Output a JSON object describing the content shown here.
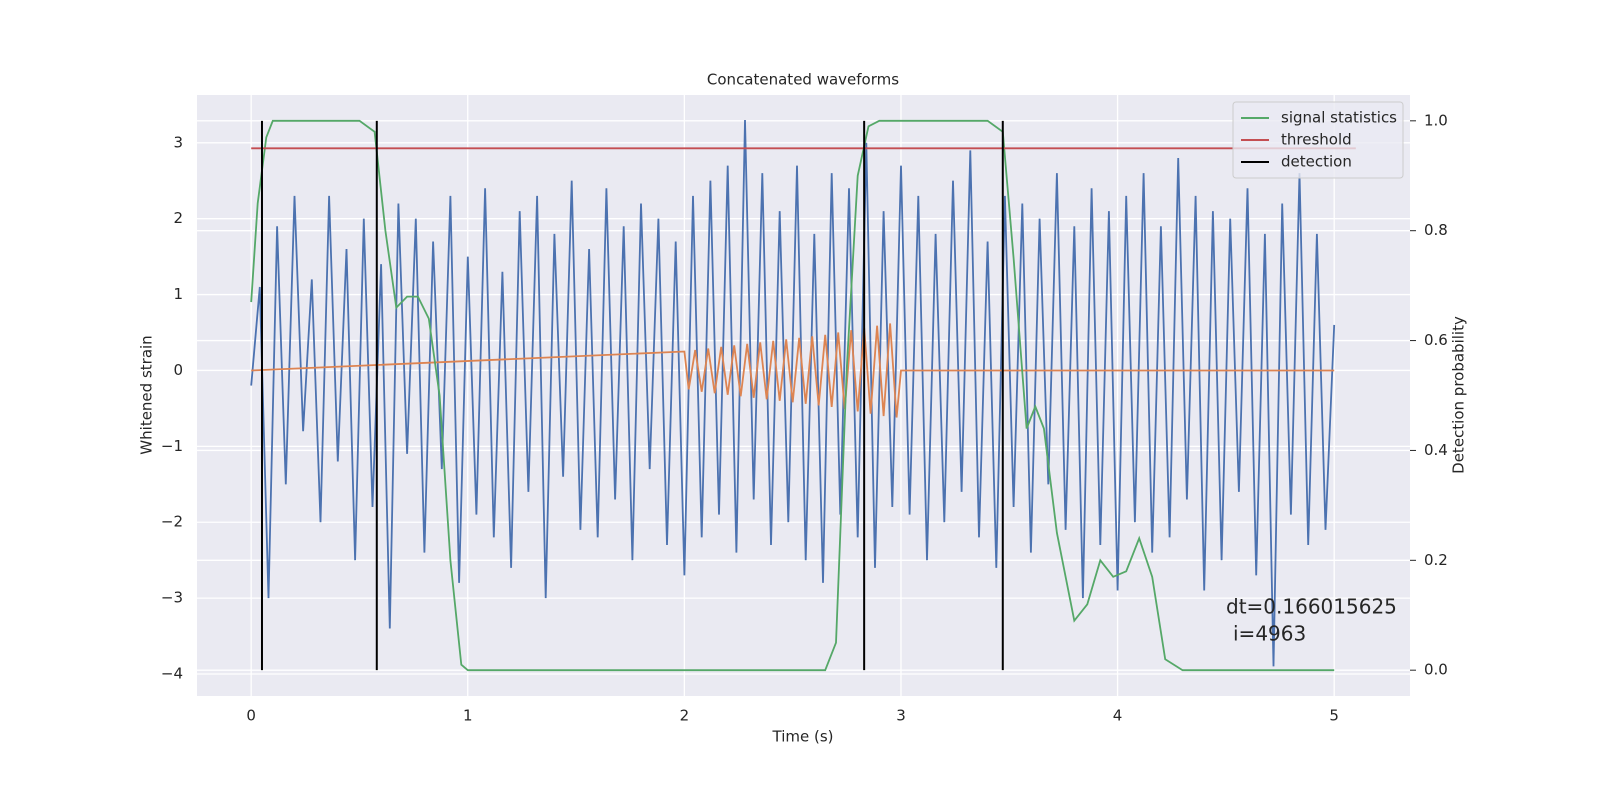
{
  "chart_data": {
    "type": "line",
    "title": "Concatenated waveforms",
    "xlabel": "Time (s)",
    "ylabel": "Whitened strain",
    "y2label": "Detection probability",
    "xlim": [
      -0.25,
      5.35
    ],
    "ylim": [
      -4.29,
      3.63
    ],
    "y2lim": [
      -0.047,
      1.047
    ],
    "xticks": [
      0,
      1,
      2,
      3,
      4,
      5
    ],
    "yticks": [
      {
        "value": -4,
        "label": "−4"
      },
      {
        "value": -3,
        "label": "−3"
      },
      {
        "value": -2,
        "label": "−2"
      },
      {
        "value": -1,
        "label": "−1"
      },
      0,
      1,
      2,
      3
    ],
    "y2ticks": [
      0.0,
      0.2,
      0.4,
      0.6,
      0.8,
      1.0
    ],
    "grid": true,
    "legend": "upper right",
    "annotation": [
      "dt=0.166015625",
      "i=4963"
    ],
    "series": [
      {
        "color": "#4c72b0",
        "x": [
          0,
          0.04,
          0.08,
          0.12,
          0.16,
          0.2,
          0.24,
          0.28,
          0.32,
          0.36,
          0.4,
          0.44,
          0.48,
          0.52,
          0.56,
          0.6,
          0.64,
          0.68,
          0.72,
          0.76,
          0.8,
          0.84,
          0.88,
          0.92,
          0.96,
          1,
          1.04,
          1.08,
          1.12,
          1.16,
          1.2,
          1.24,
          1.28,
          1.32,
          1.36,
          1.4,
          1.44,
          1.48,
          1.52,
          1.56,
          1.6,
          1.64,
          1.68,
          1.72,
          1.76,
          1.8,
          1.84,
          1.88,
          1.92,
          1.96,
          2,
          2.04,
          2.08,
          2.12,
          2.16,
          2.2,
          2.24,
          2.28,
          2.32,
          2.36,
          2.4,
          2.44,
          2.48,
          2.52,
          2.56,
          2.6,
          2.64,
          2.68,
          2.72,
          2.76,
          2.8,
          2.84,
          2.88,
          2.92,
          2.96,
          3,
          3.04,
          3.08,
          3.12,
          3.16,
          3.2,
          3.24,
          3.28,
          3.32,
          3.36,
          3.4,
          3.44,
          3.48,
          3.52,
          3.56,
          3.6,
          3.64,
          3.68,
          3.72,
          3.76,
          3.8,
          3.84,
          3.88,
          3.92,
          3.96,
          4,
          4.04,
          4.08,
          4.12,
          4.16,
          4.2,
          4.24,
          4.28,
          4.32,
          4.36,
          4.4,
          4.44,
          4.48,
          4.52,
          4.56,
          4.6,
          4.64,
          4.68,
          4.72,
          4.76,
          4.8,
          4.84,
          4.88,
          4.92,
          4.96,
          5
        ],
        "values": [
          -0.2,
          1.1,
          -3.0,
          1.9,
          -1.5,
          2.3,
          -0.8,
          1.2,
          -2.0,
          2.3,
          -1.2,
          1.6,
          -2.5,
          2.0,
          -1.8,
          1.4,
          -3.4,
          2.2,
          -1.1,
          2.0,
          -2.4,
          1.7,
          -1.3,
          2.3,
          -2.8,
          1.5,
          -1.9,
          2.4,
          -2.2,
          1.3,
          -2.6,
          2.1,
          -1.6,
          2.3,
          -3.0,
          1.8,
          -1.4,
          2.5,
          -2.1,
          1.6,
          -2.2,
          2.4,
          -1.7,
          1.9,
          -2.5,
          2.2,
          -1.3,
          2.0,
          -2.3,
          1.7,
          -2.7,
          2.3,
          -2.2,
          2.5,
          -1.9,
          2.7,
          -2.4,
          3.3,
          -1.7,
          2.6,
          -2.3,
          2.1,
          -2.0,
          2.7,
          -2.5,
          1.8,
          -2.8,
          2.6,
          -1.9,
          2.4,
          -2.2,
          3.0,
          -2.6,
          2.1,
          -1.8,
          2.7,
          -1.9,
          2.3,
          -2.5,
          1.8,
          -2.0,
          2.5,
          -1.6,
          2.9,
          -2.2,
          1.7,
          -2.6,
          2.3,
          -1.8,
          2.2,
          -2.4,
          2.0,
          -1.5,
          2.6,
          -2.1,
          1.9,
          -3.0,
          2.4,
          -2.3,
          2.1,
          -2.9,
          2.3,
          -2.0,
          2.6,
          -2.4,
          1.9,
          -2.2,
          2.8,
          -1.7,
          2.3,
          -2.9,
          2.1,
          -2.5,
          2.0,
          -1.6,
          2.4,
          -2.7,
          1.8,
          -3.9,
          2.2,
          -1.9,
          2.6,
          -2.3,
          1.8,
          -2.1,
          0.6
        ]
      },
      {
        "color": "#dd8452",
        "x": [
          0,
          2,
          2.02,
          2.05,
          2.08,
          2.11,
          2.14,
          2.17,
          2.2,
          2.23,
          2.26,
          2.29,
          2.32,
          2.35,
          2.38,
          2.41,
          2.44,
          2.47,
          2.5,
          2.53,
          2.56,
          2.59,
          2.62,
          2.65,
          2.68,
          2.71,
          2.74,
          2.77,
          2.8,
          2.83,
          2.86,
          2.89,
          2.92,
          2.95,
          2.98,
          3,
          5
        ],
        "values": [
          0,
          0.25,
          -0.25,
          0.27,
          -0.28,
          0.29,
          -0.3,
          0.31,
          -0.32,
          0.33,
          -0.34,
          0.35,
          -0.36,
          0.37,
          -0.38,
          0.39,
          -0.4,
          0.41,
          -0.42,
          0.43,
          -0.44,
          0.45,
          -0.46,
          0.47,
          -0.48,
          0.5,
          -0.51,
          0.53,
          -0.54,
          0.56,
          -0.57,
          0.59,
          -0.6,
          0.62,
          -0.62,
          0,
          0
        ]
      },
      {
        "name": "signal statistics",
        "color": "#55a868",
        "axis": "y2",
        "x": [
          0,
          0.03,
          0.07,
          0.1,
          0.5,
          0.57,
          0.62,
          0.67,
          0.72,
          0.77,
          0.82,
          0.87,
          0.92,
          0.97,
          1.0,
          2.65,
          2.7,
          2.75,
          2.8,
          2.85,
          2.9,
          3.4,
          3.47,
          3.52,
          3.58,
          3.62,
          3.66,
          3.72,
          3.8,
          3.86,
          3.92,
          3.98,
          4.04,
          4.1,
          4.16,
          4.22,
          4.3,
          5.0
        ],
        "values": [
          0.67,
          0.85,
          0.97,
          1.0,
          1.0,
          0.98,
          0.8,
          0.66,
          0.68,
          0.68,
          0.64,
          0.5,
          0.2,
          0.01,
          0.0,
          0.0,
          0.05,
          0.55,
          0.9,
          0.99,
          1.0,
          1.0,
          0.98,
          0.75,
          0.44,
          0.48,
          0.44,
          0.25,
          0.09,
          0.12,
          0.2,
          0.17,
          0.18,
          0.24,
          0.17,
          0.02,
          0.0,
          0.0
        ]
      },
      {
        "name": "threshold",
        "color": "#c44e52",
        "axis": "y2",
        "x": [
          0,
          5.1
        ],
        "values": [
          0.95,
          0.95
        ]
      },
      {
        "name": "detection",
        "color": "#000000",
        "axis": "y2",
        "kind": "vlines",
        "x": [
          0.05,
          0.58,
          2.83,
          3.47
        ],
        "ymin": 0,
        "ymax": 1
      }
    ]
  }
}
